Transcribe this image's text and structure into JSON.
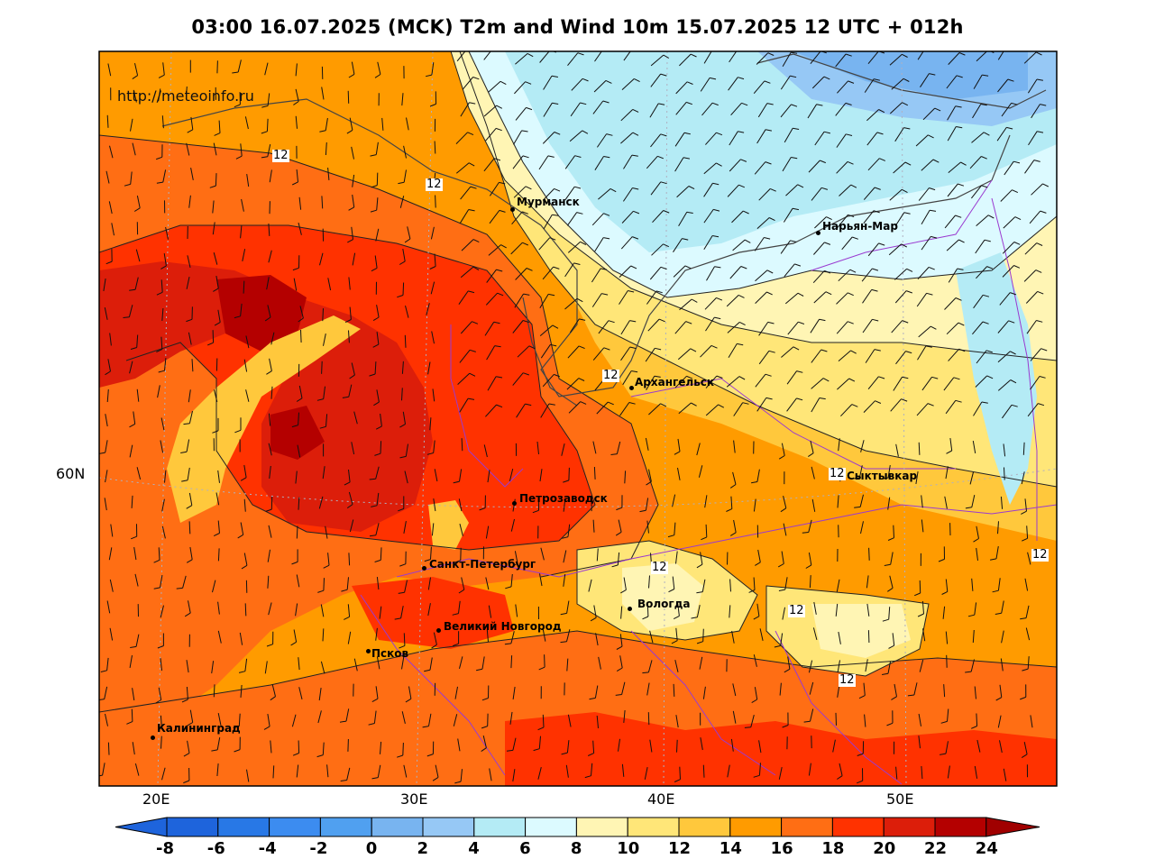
{
  "title": "03:00 16.07.2025 (MCK) T2m and Wind 10m 15.07.2025 12 UTC + 012h",
  "watermark": "http://meteoinfo.ru",
  "lon_labels": [
    "20E",
    "30E",
    "40E",
    "50E"
  ],
  "lat_labels": [
    "60N"
  ],
  "cities": [
    {
      "name": "Мурманск"
    },
    {
      "name": "Нарьян-Мар"
    },
    {
      "name": "Архангельск"
    },
    {
      "name": "Сыктывкар"
    },
    {
      "name": "Петрозаводск"
    },
    {
      "name": "Санкт-Петербург"
    },
    {
      "name": "Вологда"
    },
    {
      "name": "Великий Новгород"
    },
    {
      "name": "Псков"
    },
    {
      "name": "Калининград"
    }
  ],
  "contour_labels": [
    "12",
    "12",
    "12",
    "12",
    "12",
    "12",
    "12",
    "12",
    "12"
  ],
  "colorbar": {
    "ticks": [
      "-8",
      "-6",
      "-4",
      "-2",
      "0",
      "2",
      "4",
      "6",
      "8",
      "10",
      "12",
      "14",
      "16",
      "18",
      "20",
      "22",
      "24"
    ],
    "colors": [
      "#1e64dc",
      "#2878e6",
      "#3c8cf0",
      "#50a0f0",
      "#78b4f0",
      "#96c8f5",
      "#b4ebf5",
      "#dcfaff",
      "#fff5b4",
      "#ffe678",
      "#ffc83c",
      "#ff9b00",
      "#ff6e14",
      "#ff3200",
      "#dc1e0a",
      "#b40000"
    ],
    "under_color": "#1e64dc",
    "over_color": "#a00000"
  }
}
